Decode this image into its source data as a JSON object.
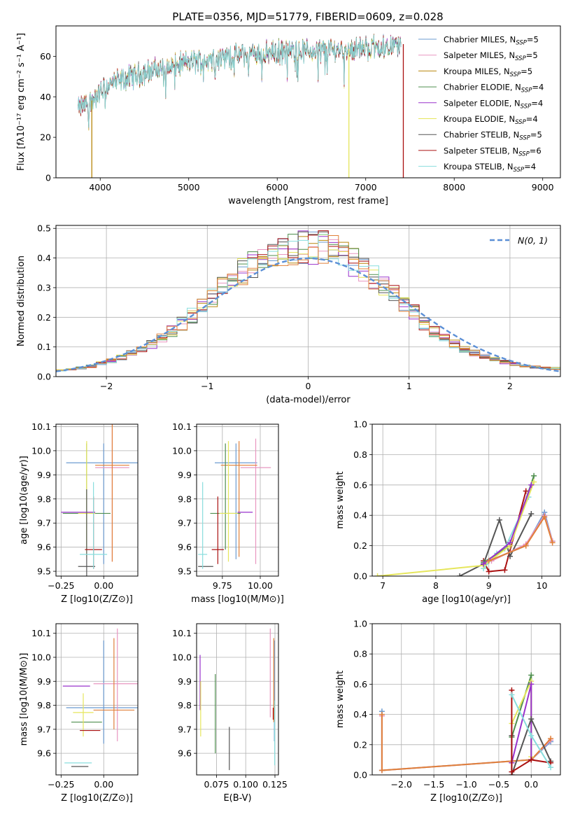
{
  "figure_title": "PLATE=0356, MJD=51779, FIBERID=0609, z=0.028",
  "chart_data": [
    {
      "id": "spectrum",
      "type": "line",
      "xlabel": "wavelength [Angstrom, rest frame]",
      "ylabel": "Flux [fλ10⁻¹⁷ erg cm⁻² s⁻¹ A⁻¹]",
      "xlim": [
        3500,
        9200
      ],
      "ylim": [
        0,
        75
      ],
      "xticks": [
        4000,
        5000,
        6000,
        7000,
        8000,
        9000
      ],
      "yticks": [
        0,
        20,
        40,
        60
      ],
      "grid": false,
      "legend_position": "top-right",
      "series": [
        {
          "name": "Chabrier MILES, N_SSP=5",
          "color": "#6b9bd1"
        },
        {
          "name": "Salpeter MILES, N_SSP=5",
          "color": "#e896c0"
        },
        {
          "name": "Kroupa MILES, N_SSP=5",
          "color": "#b8860b"
        },
        {
          "name": "Chabrier ELODIE, N_SSP=4",
          "color": "#4f8f4f"
        },
        {
          "name": "Salpeter ELODIE, N_SSP=4",
          "color": "#9932cc"
        },
        {
          "name": "Kroupa ELODIE, N_SSP=4",
          "color": "#e6e65c"
        },
        {
          "name": "Chabrier STELIB, N_SSP=5",
          "color": "#555555"
        },
        {
          "name": "Salpeter STELIB, N_SSP=6",
          "color": "#aa1111"
        },
        {
          "name": "Kroupa STELIB, N_SSP=4",
          "color": "#88dddd"
        }
      ],
      "continuum": {
        "x": [
          3750,
          3900,
          4100,
          4500,
          5000,
          5500,
          6000,
          6500,
          7000,
          7400
        ],
        "y": [
          34,
          38,
          46,
          52,
          57,
          60,
          62,
          63,
          64,
          66
        ]
      },
      "dips": [
        {
          "x": 3905,
          "y": 0,
          "color": "#b8860b"
        },
        {
          "x": 6810,
          "y": 0,
          "color": "#e6e65c"
        },
        {
          "x": 7425,
          "y": 0,
          "color": "#aa1111"
        }
      ]
    },
    {
      "id": "residuals",
      "type": "histogram",
      "xlabel": "(data-model)/error",
      "ylabel": "Normed distribution",
      "xlim": [
        -2.5,
        2.5
      ],
      "ylim": [
        0,
        0.51
      ],
      "xticks": [
        -2,
        -1,
        0,
        1,
        2
      ],
      "yticks": [
        0.0,
        0.1,
        0.2,
        0.3,
        0.4,
        0.5
      ],
      "grid": true,
      "legend_position": "top-right",
      "reference_curve": {
        "name": "N(0, 1)",
        "color": "#5b8fd6",
        "style": "dashed"
      },
      "bins": [
        -2.5,
        -2.4,
        -2.3,
        -2.2,
        -2.1,
        -2.0,
        -1.9,
        -1.8,
        -1.7,
        -1.6,
        -1.5,
        -1.4,
        -1.3,
        -1.2,
        -1.1,
        -1.0,
        -0.9,
        -0.8,
        -0.7,
        -0.6,
        -0.5,
        -0.4,
        -0.3,
        -0.2,
        -0.1,
        0.0,
        0.1,
        0.2,
        0.3,
        0.4,
        0.5,
        0.6,
        0.7,
        0.8,
        0.9,
        1.0,
        1.1,
        1.2,
        1.3,
        1.4,
        1.5,
        1.6,
        1.7,
        1.8,
        1.9,
        2.0,
        2.1,
        2.2,
        2.3,
        2.4,
        2.5
      ],
      "envelope": [
        0.022,
        0.025,
        0.03,
        0.035,
        0.045,
        0.055,
        0.065,
        0.078,
        0.09,
        0.11,
        0.13,
        0.155,
        0.18,
        0.21,
        0.24,
        0.27,
        0.3,
        0.33,
        0.36,
        0.38,
        0.4,
        0.41,
        0.42,
        0.43,
        0.44,
        0.44,
        0.44,
        0.43,
        0.41,
        0.39,
        0.37,
        0.34,
        0.31,
        0.28,
        0.25,
        0.22,
        0.18,
        0.155,
        0.13,
        0.11,
        0.095,
        0.08,
        0.068,
        0.058,
        0.05,
        0.042,
        0.036,
        0.032,
        0.03,
        0.028
      ]
    },
    {
      "id": "age-vs-Z",
      "type": "errorbar",
      "xlabel": "Z [log10(Z/Z⊙)]",
      "ylabel": "age [log10(age/yr)]",
      "xlim": [
        -0.28,
        0.2
      ],
      "ylim": [
        9.48,
        10.11
      ],
      "xticks": [
        -0.25,
        0.0
      ],
      "yticks": [
        9.5,
        9.6,
        9.7,
        9.8,
        9.9,
        10.0,
        10.1
      ],
      "grid": true,
      "points": [
        {
          "x": 0.0,
          "y": 9.95,
          "xerr": 0.22,
          "yerr": [
            0.42,
            0.08
          ],
          "color": "#6b9bd1"
        },
        {
          "x": 0.05,
          "y": 9.93,
          "xerr": 0.1,
          "yerr": [
            0.39,
            0.19
          ],
          "color": "#e896c0"
        },
        {
          "x": 0.05,
          "y": 9.94,
          "xerr": 0.1,
          "yerr": [
            0.4,
            0.17
          ],
          "color": "#e0803a"
        },
        {
          "x": -0.1,
          "y": 9.74,
          "xerr": 0.14,
          "yerr": [
            0.15,
            0.29
          ],
          "color": "#4f8f4f"
        },
        {
          "x": -0.15,
          "y": 9.745,
          "xerr": 0.1,
          "yerr": [
            0.0,
            0.0
          ],
          "color": "#9932cc"
        },
        {
          "x": -0.1,
          "y": 9.74,
          "xerr": 0.05,
          "yerr": [
            0.18,
            0.3
          ],
          "color": "#e6e65c"
        },
        {
          "x": -0.1,
          "y": 9.52,
          "xerr": 0.05,
          "yerr": [
            0.04,
            0.32
          ],
          "color": "#555555"
        },
        {
          "x": -0.06,
          "y": 9.59,
          "xerr": 0.05,
          "yerr": [
            0.08,
            0.22
          ],
          "color": "#aa1111"
        },
        {
          "x": -0.06,
          "y": 9.57,
          "xerr": 0.08,
          "yerr": [
            0.06,
            0.3
          ],
          "color": "#88dddd"
        }
      ]
    },
    {
      "id": "age-vs-mass",
      "type": "errorbar",
      "xlabel": "mass [log10(M/M⊙)]",
      "ylabel": "",
      "xlim": [
        9.58,
        10.12
      ],
      "ylim": [
        9.48,
        10.11
      ],
      "xticks": [
        9.75,
        10.0
      ],
      "yticks": [
        9.5,
        9.6,
        9.7,
        9.8,
        9.9,
        10.0,
        10.1
      ],
      "grid": true,
      "points": [
        {
          "x": 9.84,
          "y": 9.95,
          "xerr": 0.14,
          "yerr": [
            0.4,
            0.08
          ],
          "color": "#6b9bd1"
        },
        {
          "x": 9.97,
          "y": 9.93,
          "xerr": 0.1,
          "yerr": [
            0.4,
            0.12
          ],
          "color": "#e896c0"
        },
        {
          "x": 9.86,
          "y": 9.94,
          "xerr": 0.12,
          "yerr": [
            0.38,
            0.1
          ],
          "color": "#e0803a"
        },
        {
          "x": 9.77,
          "y": 9.74,
          "xerr": 0.1,
          "yerr": [
            0.15,
            0.29
          ],
          "color": "#4f8f4f"
        },
        {
          "x": 9.9,
          "y": 9.745,
          "xerr": 0.05,
          "yerr": [
            0.0,
            0.0
          ],
          "color": "#9932cc"
        },
        {
          "x": 9.79,
          "y": 9.74,
          "xerr": 0.06,
          "yerr": [
            0.2,
            0.3
          ],
          "color": "#e6e65c"
        },
        {
          "x": 9.64,
          "y": 9.52,
          "xerr": 0.05,
          "yerr": [
            0.0,
            0.0
          ],
          "color": "#555555"
        },
        {
          "x": 9.72,
          "y": 9.59,
          "xerr": 0.04,
          "yerr": [
            0.06,
            0.22
          ],
          "color": "#aa1111"
        },
        {
          "x": 9.62,
          "y": 9.57,
          "xerr": 0.03,
          "yerr": [
            0.06,
            0.3
          ],
          "color": "#88dddd"
        }
      ]
    },
    {
      "id": "mass-weight-vs-age",
      "type": "line",
      "xlabel": "age [log10(age/yr)]",
      "ylabel": "mass weight",
      "xlim": [
        6.8,
        10.35
      ],
      "ylim": [
        0,
        1.0
      ],
      "xticks": [
        7,
        8,
        9,
        10
      ],
      "yticks": [
        0.0,
        0.2,
        0.4,
        0.6,
        0.8,
        1.0
      ],
      "grid": true,
      "series": [
        {
          "color": "#aa1111",
          "points": [
            [
              8.9,
              0.1
            ],
            [
              9.0,
              0.03
            ],
            [
              9.3,
              0.04
            ],
            [
              9.7,
              0.56
            ]
          ]
        },
        {
          "color": "#555555",
          "points": [
            [
              8.45,
              0.0
            ],
            [
              8.9,
              0.08
            ],
            [
              9.2,
              0.37
            ],
            [
              9.4,
              0.13
            ],
            [
              9.8,
              0.41
            ]
          ]
        },
        {
          "color": "#88dddd",
          "points": [
            [
              8.9,
              0.05
            ],
            [
              9.15,
              0.15
            ],
            [
              9.3,
              0.18
            ],
            [
              9.75,
              0.52
            ]
          ]
        },
        {
          "color": "#4f8f4f",
          "points": [
            [
              8.9,
              0.09
            ],
            [
              9.4,
              0.2
            ],
            [
              9.85,
              0.66
            ]
          ]
        },
        {
          "color": "#e6e65c",
          "points": [
            [
              6.9,
              0.0
            ],
            [
              8.9,
              0.07
            ],
            [
              9.4,
              0.2
            ],
            [
              9.85,
              0.62
            ]
          ]
        },
        {
          "color": "#9932cc",
          "points": [
            [
              8.9,
              0.08
            ],
            [
              9.4,
              0.22
            ],
            [
              9.8,
              0.6
            ]
          ]
        },
        {
          "color": "#6b9bd1",
          "points": [
            [
              9.0,
              0.1
            ],
            [
              9.7,
              0.2
            ],
            [
              10.05,
              0.42
            ],
            [
              10.2,
              0.23
            ]
          ]
        },
        {
          "color": "#e896c0",
          "points": [
            [
              9.05,
              0.1
            ],
            [
              9.7,
              0.21
            ],
            [
              10.05,
              0.4
            ],
            [
              10.2,
              0.23
            ]
          ]
        },
        {
          "color": "#e0803a",
          "points": [
            [
              9.0,
              0.1
            ],
            [
              9.7,
              0.2
            ],
            [
              10.05,
              0.39
            ],
            [
              10.2,
              0.22
            ]
          ]
        }
      ]
    },
    {
      "id": "mass-vs-Z",
      "type": "errorbar",
      "xlabel": "Z [log10(Z/Z⊙)]",
      "ylabel": "mass [log10(M/M⊙)]",
      "xlim": [
        -0.28,
        0.2
      ],
      "ylim": [
        9.51,
        10.14
      ],
      "xticks": [
        -0.25,
        0.0
      ],
      "yticks": [
        9.6,
        9.7,
        9.8,
        9.9,
        10.0,
        10.1
      ],
      "grid": true,
      "points": [
        {
          "x": 0.0,
          "y": 9.79,
          "xerr": 0.22,
          "yerr": [
            0.15,
            0.28
          ],
          "color": "#6b9bd1"
        },
        {
          "x": 0.08,
          "y": 9.89,
          "xerr": 0.14,
          "yerr": [
            0.24,
            0.23
          ],
          "color": "#e896c0"
        },
        {
          "x": 0.06,
          "y": 9.78,
          "xerr": 0.12,
          "yerr": [
            0.08,
            0.3
          ],
          "color": "#e0803a"
        },
        {
          "x": -0.1,
          "y": 9.73,
          "xerr": 0.09,
          "yerr": [
            0.0,
            0.0
          ],
          "color": "#4f8f4f"
        },
        {
          "x": -0.16,
          "y": 9.88,
          "xerr": 0.08,
          "yerr": [
            0.0,
            0.0
          ],
          "color": "#9932cc"
        },
        {
          "x": -0.12,
          "y": 9.77,
          "xerr": 0.06,
          "yerr": [
            0.1,
            0.08
          ],
          "color": "#e6e65c"
        },
        {
          "x": -0.14,
          "y": 9.545,
          "xerr": 0.05,
          "yerr": [
            0.0,
            0.0
          ],
          "color": "#555555"
        },
        {
          "x": -0.08,
          "y": 9.695,
          "xerr": 0.06,
          "yerr": [
            0.0,
            0.0
          ],
          "color": "#aa1111"
        },
        {
          "x": -0.15,
          "y": 9.56,
          "xerr": 0.08,
          "yerr": [
            0.0,
            0.0
          ],
          "color": "#88dddd"
        }
      ]
    },
    {
      "id": "mass-vs-ebv",
      "type": "errorbar",
      "xlabel": "E(B-V)",
      "ylabel": "",
      "xlim": [
        0.058,
        0.128
      ],
      "ylim": [
        9.51,
        10.14
      ],
      "xticks": [
        0.075,
        0.1,
        0.125
      ],
      "yticks": [
        9.6,
        9.7,
        9.8,
        9.9,
        10.0,
        10.1
      ],
      "grid": true,
      "points": [
        {
          "x": 0.1245,
          "y": 9.8,
          "xerr": 0.0,
          "yerr": [
            0.15,
            0.27
          ],
          "color": "#6b9bd1"
        },
        {
          "x": 0.121,
          "y": 9.89,
          "xerr": 0.0,
          "yerr": [
            0.14,
            0.23
          ],
          "color": "#e896c0"
        },
        {
          "x": 0.124,
          "y": 9.78,
          "xerr": 0.0,
          "yerr": [
            0.05,
            0.3
          ],
          "color": "#e0803a"
        },
        {
          "x": 0.074,
          "y": 9.74,
          "xerr": 0.0,
          "yerr": [
            0.14,
            0.19
          ],
          "color": "#4f8f4f"
        },
        {
          "x": 0.061,
          "y": 9.88,
          "xerr": 0.0,
          "yerr": [
            0.1,
            0.13
          ],
          "color": "#9932cc"
        },
        {
          "x": 0.0615,
          "y": 9.8,
          "xerr": 0.0,
          "yerr": [
            0.13,
            0.1
          ],
          "color": "#e6e65c"
        },
        {
          "x": 0.086,
          "y": 9.6,
          "xerr": 0.0,
          "yerr": [
            0.07,
            0.11
          ],
          "color": "#555555"
        },
        {
          "x": 0.1235,
          "y": 9.77,
          "xerr": 0.0,
          "yerr": [
            0.03,
            0.02
          ],
          "color": "#aa1111"
        },
        {
          "x": 0.1248,
          "y": 9.7,
          "xerr": 0.0,
          "yerr": [
            0.15,
            0.12
          ],
          "color": "#88dddd"
        }
      ]
    },
    {
      "id": "mass-weight-vs-Z",
      "type": "line",
      "xlabel": "Z [log10(Z/Z⊙)]",
      "ylabel": "mass weight",
      "xlim": [
        -2.45,
        0.45
      ],
      "ylim": [
        0,
        1.0
      ],
      "xticks": [
        -2.0,
        -1.5,
        -1.0,
        -0.5,
        0.0
      ],
      "yticks": [
        0.0,
        0.2,
        0.4,
        0.6,
        0.8,
        1.0
      ],
      "grid": true,
      "series": [
        {
          "color": "#6b9bd1",
          "points": [
            [
              -2.3,
              0.42
            ],
            [
              -2.3,
              0.03
            ],
            [
              0.0,
              0.1
            ],
            [
              0.3,
              0.22
            ]
          ]
        },
        {
          "color": "#e896c0",
          "points": [
            [
              -2.3,
              0.39
            ],
            [
              -2.3,
              0.03
            ],
            [
              0.0,
              0.1
            ],
            [
              0.3,
              0.23
            ]
          ]
        },
        {
          "color": "#e0803a",
          "points": [
            [
              -2.3,
              0.4
            ],
            [
              -2.3,
              0.03
            ],
            [
              0.0,
              0.1
            ],
            [
              0.3,
              0.24
            ]
          ]
        },
        {
          "color": "#4f8f4f",
          "points": [
            [
              -0.3,
              0.25
            ],
            [
              0.0,
              0.66
            ],
            [
              0.0,
              0.1
            ]
          ]
        },
        {
          "color": "#e6e65c",
          "points": [
            [
              -0.3,
              0.34
            ],
            [
              0.0,
              0.62
            ],
            [
              0.0,
              0.12
            ]
          ]
        },
        {
          "color": "#9932cc",
          "points": [
            [
              -0.3,
              0.08
            ],
            [
              0.0,
              0.6
            ],
            [
              0.0,
              0.1
            ]
          ]
        },
        {
          "color": "#555555",
          "points": [
            [
              -0.3,
              0.26
            ],
            [
              -0.3,
              0.0
            ],
            [
              0.0,
              0.37
            ],
            [
              0.3,
              0.09
            ]
          ]
        },
        {
          "color": "#aa1111",
          "points": [
            [
              -0.3,
              0.56
            ],
            [
              -0.3,
              0.02
            ],
            [
              0.0,
              0.1
            ],
            [
              0.3,
              0.08
            ]
          ]
        },
        {
          "color": "#88dddd",
          "points": [
            [
              -0.3,
              0.53
            ],
            [
              0.0,
              0.26
            ],
            [
              0.3,
              0.05
            ]
          ]
        }
      ]
    }
  ]
}
